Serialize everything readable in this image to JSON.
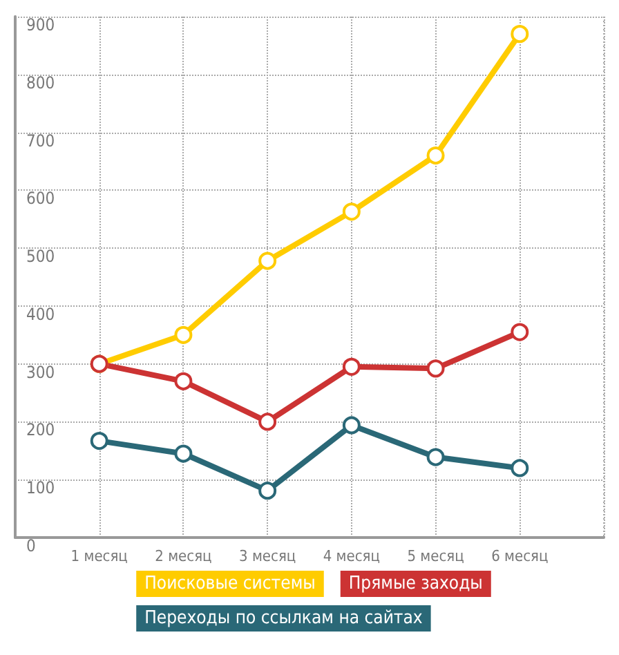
{
  "chart_data": {
    "type": "line",
    "categories": [
      "1 месяц",
      "2 месяц",
      "3 месяц",
      "4 месяц",
      "5 месяц",
      "6 месяц"
    ],
    "series": [
      {
        "name": "Поисковые системы",
        "color": "#ffcc00",
        "values": [
          300,
          350,
          478,
          563,
          660,
          870
        ]
      },
      {
        "name": "Прямые заходы",
        "color": "#cc3333",
        "values": [
          300,
          270,
          200,
          295,
          292,
          355
        ]
      },
      {
        "name": "Переходы по ссылкам на сайтах",
        "color": "#2a6877",
        "values": [
          167,
          145,
          81,
          194,
          139,
          120
        ]
      }
    ],
    "ylim": [
      0,
      900
    ],
    "yticks": [
      0,
      100,
      200,
      300,
      400,
      500,
      600,
      700,
      800,
      900
    ],
    "grid": true,
    "legend": "bottom",
    "marker": "circle",
    "line_style": "solid"
  }
}
